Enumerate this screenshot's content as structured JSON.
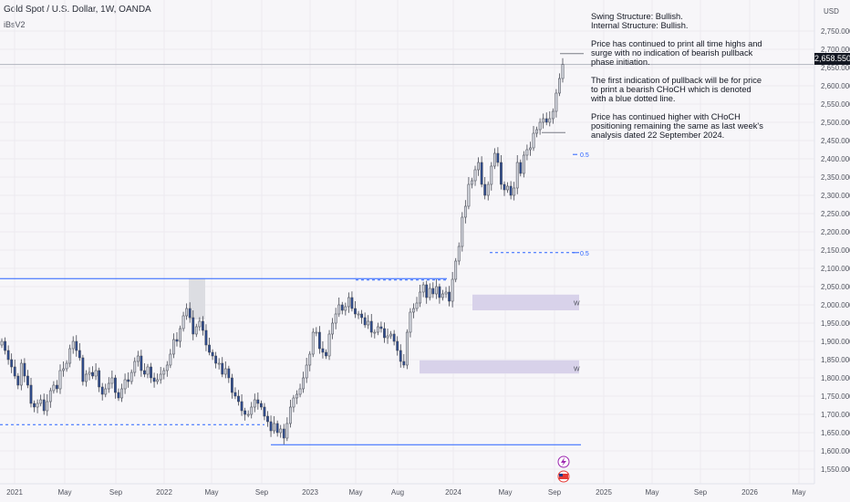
{
  "header": {
    "symbol_line": "Gold Spot / U.S. Dollar, 1W, OANDA",
    "indicator": "iBsV2"
  },
  "notes": {
    "structure_swing": "Swing Structure: Bullish.",
    "structure_internal": "Internal Structure: Bullish.",
    "paragraph_1": "Price has continued to print all time highs and surge with no indication of bearish pullback phase initiation.",
    "paragraph_2": "The first indication of pullback will be for price to print a bearish CHoCH which is denoted with a blue dotted line.",
    "paragraph_3": "Price has continued higher with CHoCH positioning remaining the same as last week's analysis dated 22 September 2024."
  },
  "price_axis": {
    "currency": "USD",
    "current_price": "2,658.550",
    "current_value": 2658.55
  },
  "colors": {
    "bull_body": "#d1d4dc",
    "bear_body": "#2d4b8e",
    "wick": "#434651",
    "bos_line": "#2962ff",
    "zone_fill": "#d8d2ea",
    "grid": "#eceaf0"
  },
  "chart_data": {
    "type": "candlestick",
    "x_axis_ticks": [
      "2021",
      "May",
      "Sep",
      "2022",
      "May",
      "Sep",
      "2023",
      "May",
      "Aug",
      "2024",
      "May",
      "Sep",
      "2025",
      "May",
      "Sep",
      "2026",
      "May"
    ],
    "y_axis_ticks": [
      1550,
      1600,
      1650,
      1700,
      1750,
      1800,
      1850,
      1900,
      1950,
      2000,
      2050,
      2100,
      2150,
      2200,
      2250,
      2300,
      2350,
      2400,
      2450,
      2500,
      2550,
      2600,
      2650,
      2700,
      2750
    ],
    "ylim": [
      1530,
      2780
    ],
    "closes": [
      1900,
      1875,
      1850,
      1830,
      1805,
      1780,
      1840,
      1805,
      1780,
      1730,
      1720,
      1730,
      1740,
      1710,
      1735,
      1765,
      1780,
      1770,
      1820,
      1825,
      1840,
      1880,
      1900,
      1875,
      1855,
      1790,
      1810,
      1815,
      1805,
      1820,
      1775,
      1755,
      1770,
      1785,
      1800,
      1760,
      1745,
      1770,
      1795,
      1790,
      1815,
      1845,
      1860,
      1820,
      1810,
      1830,
      1800,
      1790,
      1795,
      1810,
      1820,
      1835,
      1865,
      1905,
      1900,
      1935,
      1970,
      1990,
      1965,
      1920,
      1940,
      1955,
      1930,
      1890,
      1870,
      1860,
      1840,
      1840,
      1810,
      1825,
      1800,
      1760,
      1750,
      1735,
      1710,
      1700,
      1700,
      1720,
      1740,
      1730,
      1720,
      1695,
      1680,
      1655,
      1675,
      1650,
      1660,
      1635,
      1675,
      1720,
      1745,
      1755,
      1770,
      1800,
      1835,
      1865,
      1925,
      1925,
      1880,
      1870,
      1860,
      1920,
      1950,
      1975,
      2000,
      1985,
      1995,
      2020,
      1990,
      1975,
      1975,
      1965,
      1945,
      1955,
      1925,
      1925,
      1940,
      1935,
      1910,
      1915,
      1920,
      1900,
      1875,
      1845,
      1835,
      1925,
      1980,
      1990,
      2005,
      2035,
      2055,
      2020,
      2045,
      2030,
      2050,
      2020,
      2030,
      2035,
      2010,
      2070,
      2120,
      2160,
      2240,
      2270,
      2330,
      2340,
      2370,
      2390,
      2330,
      2300,
      2330,
      2380,
      2415,
      2390,
      2330,
      2315,
      2325,
      2300,
      2320,
      2390,
      2360,
      2410,
      2425,
      2430,
      2470,
      2480,
      2500,
      2510,
      2500,
      2510,
      2530,
      2580,
      2620,
      2658.55
    ],
    "annotations": [
      {
        "label": "0.5",
        "value": 2412
      },
      {
        "label": "0.5",
        "value": 2143
      },
      {
        "label": "W",
        "value": 2006
      },
      {
        "label": "W",
        "value": 1826
      }
    ]
  }
}
